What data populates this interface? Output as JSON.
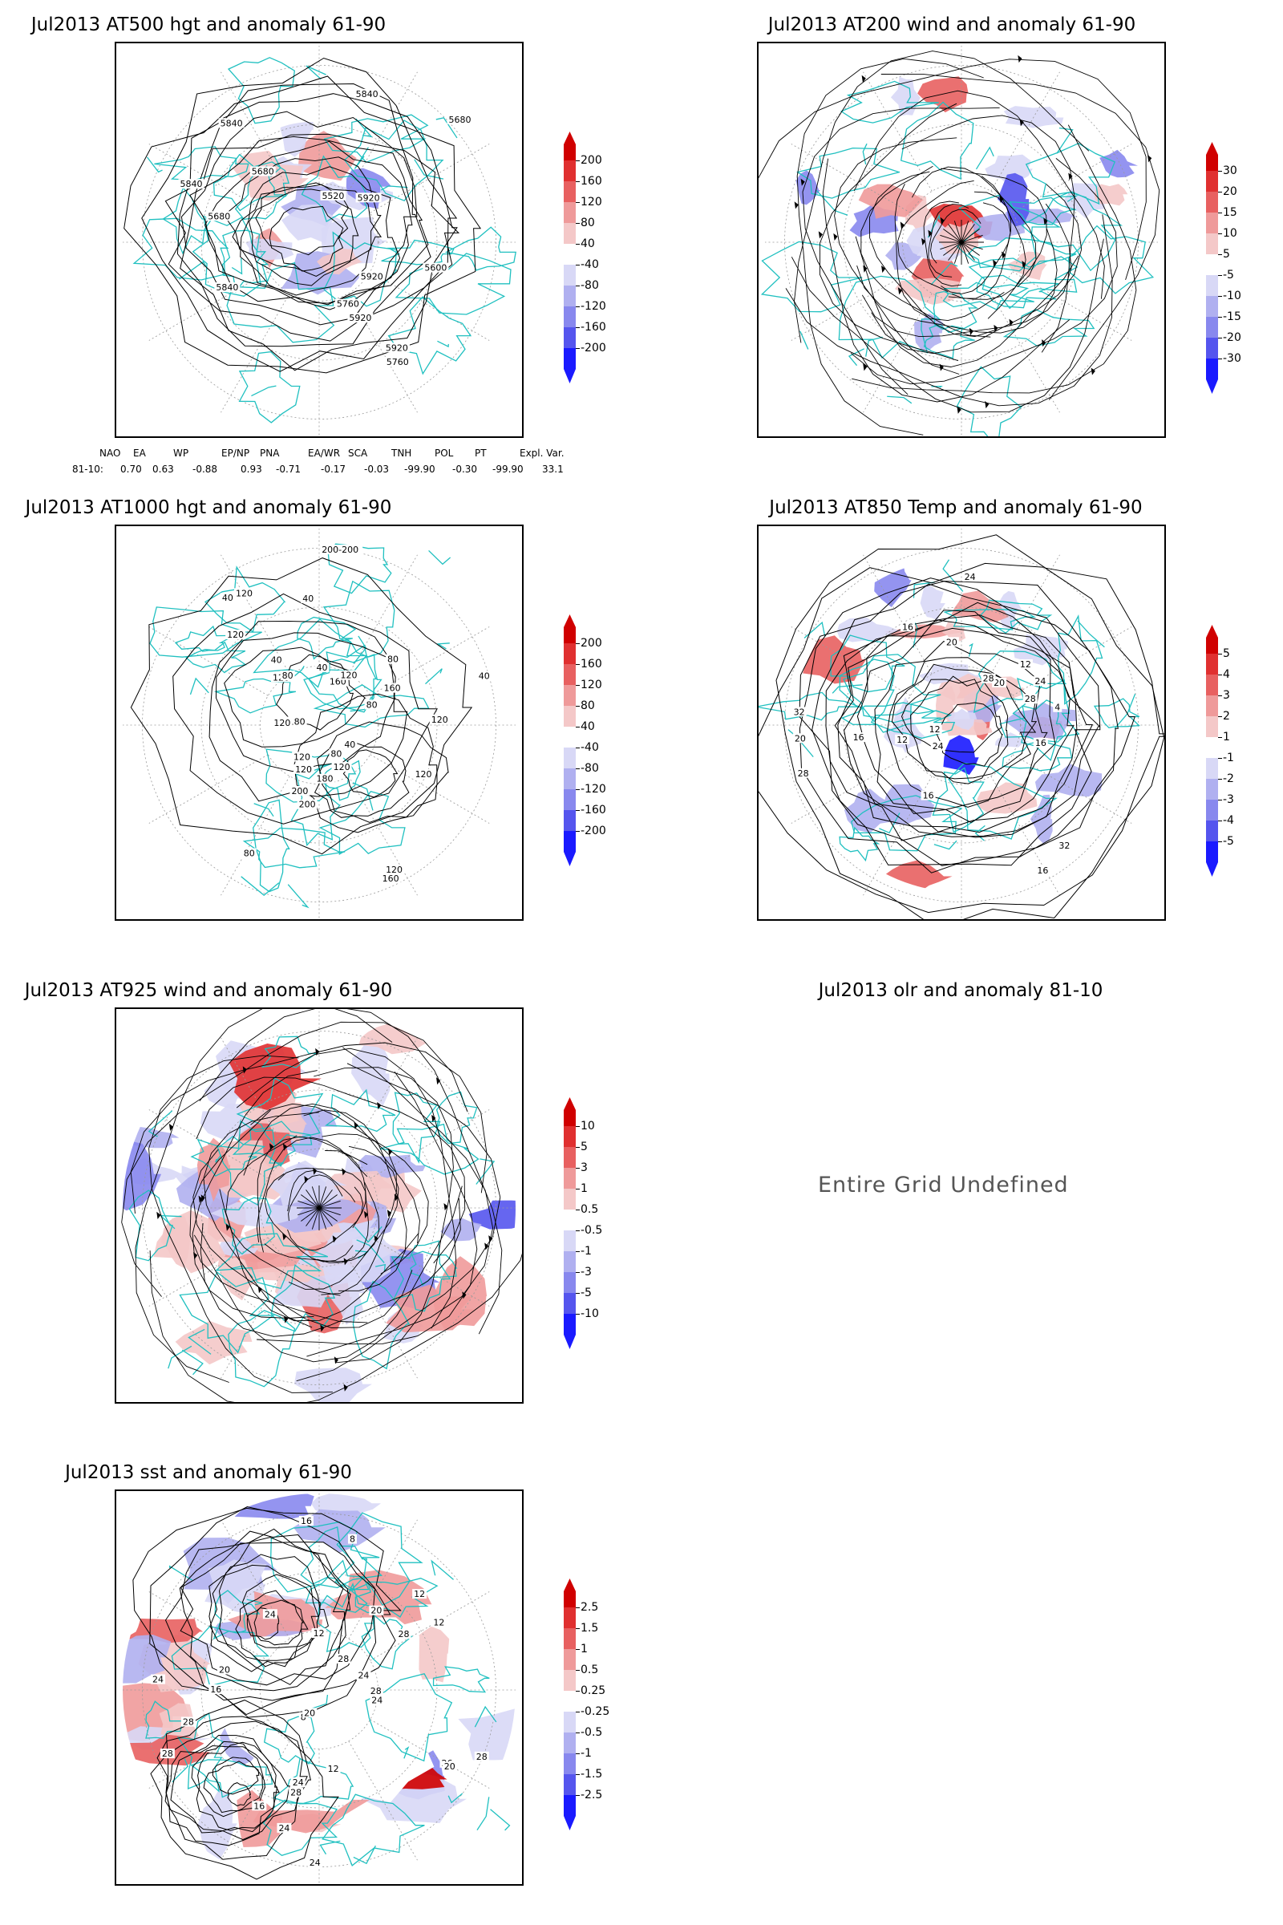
{
  "panels": [
    {
      "id": "p500",
      "title": "Jul2013 AT500 hgt and anomaly 61-90",
      "cbar_labels": [
        "200",
        "160",
        "120",
        "80",
        "40",
        "-40",
        "-80",
        "-120",
        "-160",
        "-200"
      ],
      "contour_labels": [
        "5840",
        "5840",
        "5760",
        "5680",
        "5680",
        "5920",
        "5680",
        "5840",
        "5520",
        "5600",
        "5920",
        "5760",
        "5920",
        "5840",
        "5920"
      ]
    },
    {
      "id": "p200",
      "title": "Jul2013 AT200 wind and anomaly 61-90",
      "cbar_labels": [
        "30",
        "20",
        "15",
        "10",
        "5",
        "-5",
        "-10",
        "-15",
        "-20",
        "-30"
      ],
      "contour_labels": []
    },
    {
      "id": "p1000",
      "title": "Jul2013 AT1000 hgt and anomaly 61-90",
      "cbar_labels": [
        "200",
        "160",
        "120",
        "80",
        "40",
        "-40",
        "-80",
        "-120",
        "-160",
        "-200"
      ],
      "contour_labels": [
        "120",
        "180",
        "160",
        "200",
        "160",
        "120",
        "120",
        "40",
        "80",
        "120",
        "120",
        "180",
        "120",
        "80",
        "40",
        "40",
        "40",
        "120",
        "200",
        "120",
        "80",
        "160",
        "40",
        "200-200",
        "80",
        "120",
        "40",
        "120",
        "120",
        "80"
      ]
    },
    {
      "id": "p850",
      "title": "Jul2013 AT850 Temp and anomaly 61-90",
      "cbar_labels": [
        "5",
        "4",
        "3",
        "2",
        "1",
        "-1",
        "-2",
        "-3",
        "-4",
        "-5"
      ],
      "contour_labels": [
        "16",
        "12",
        "16",
        "12",
        "20",
        "24",
        "20",
        "24",
        "28",
        "28",
        "32",
        "4",
        "12",
        "16",
        "28",
        "24",
        "20",
        "16",
        "32",
        "16"
      ]
    },
    {
      "id": "p925",
      "title": "Jul2013 AT925 wind and anomaly 61-90",
      "cbar_labels": [
        "10",
        "5",
        "3",
        "1",
        "0.5",
        "-0.5",
        "-1",
        "-3",
        "-5",
        "-10"
      ],
      "contour_labels": []
    },
    {
      "id": "polr",
      "title": "Jul2013 olr and anomaly 81-10",
      "cbar_labels": [],
      "contour_labels": []
    },
    {
      "id": "psst",
      "title": "Jul2013 sst and anomaly 61-90",
      "cbar_labels": [
        "2.5",
        "1.5",
        "1",
        "0.5",
        "0.25",
        "-0.25",
        "-0.5",
        "-1",
        "-1.5",
        "-2.5"
      ],
      "contour_labels": [
        "28",
        "28",
        "26",
        "24",
        "28",
        "20",
        "24",
        "16",
        "20",
        "12",
        "16",
        "12",
        "8",
        "12",
        "24",
        "28",
        "16",
        "8",
        "12",
        "28",
        "24",
        "20",
        "28",
        "28",
        "24",
        "20",
        "24",
        "24"
      ]
    }
  ],
  "indices": {
    "headers": [
      "NAO",
      "EA",
      "WP",
      "EP/NP",
      "PNA",
      "EA/WR",
      "SCA",
      "TNH",
      "POL",
      "PT",
      "Expl. Var."
    ],
    "row_label": "81-10:",
    "values": [
      "0.70",
      "0.63",
      "-0.88",
      "0.93",
      "-0.71",
      "-0.17",
      "-0.03",
      "-99.90",
      "-0.30",
      "-99.90",
      "33.1"
    ]
  },
  "olr_message": "Entire Grid Undefined",
  "colors": {
    "coast": "#20c0c0",
    "pos": [
      "#f4c8c8",
      "#ef9a9a",
      "#e86060",
      "#e03030",
      "#d00000"
    ],
    "neg": [
      "#d8d8f6",
      "#b0b0f0",
      "#8888ee",
      "#5555ee",
      "#1a1aff"
    ]
  }
}
